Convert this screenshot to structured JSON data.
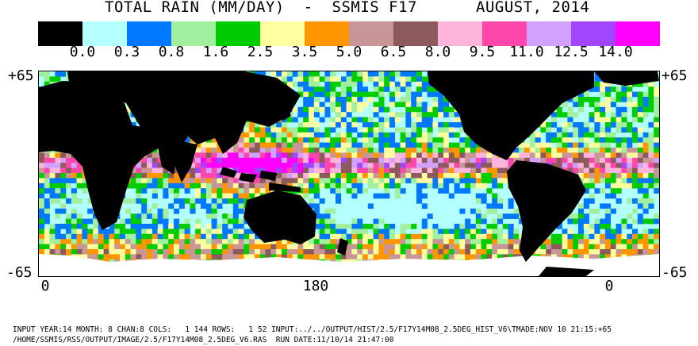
{
  "title": {
    "main": "TOTAL RAIN (MM/DAY)  -  SSMIS F17",
    "date": "AUGUST, 2014"
  },
  "legend": {
    "colors": [
      "#000000",
      "#b4ffff",
      "#0078ff",
      "#a0f0a0",
      "#00cc00",
      "#ffffa0",
      "#ff9600",
      "#c89696",
      "#8c5a5a",
      "#ffb4dc",
      "#ff46aa",
      "#d2a0ff",
      "#a046ff",
      "#ff00ff"
    ],
    "ticks": [
      "0.0",
      "0.3",
      "0.8",
      "1.6",
      "2.5",
      "3.5",
      "5.0",
      "6.5",
      "8.0",
      "9.5",
      "11.0",
      "12.5",
      "14.0"
    ]
  },
  "axes": {
    "lat_top": "+65",
    "lat_bottom": "-65",
    "lon_left": "0",
    "lon_center": "180",
    "lon_right": "0"
  },
  "map": {
    "land_color": "#000000",
    "nodata_color": "#ffffff"
  },
  "footer": {
    "line1": "INPUT YEAR:14 MONTH: 8 CHAN:8 COLS:   1 144 ROWS:   1 52 INPUT:../../OUTPUT/HIST/2.5/F17Y14M08_2.5DEG_HIST_V6\\TMADE:NOV 10 21:15:+65",
    "line2": "/HOME/SSMIS/RSS/OUTPUT/IMAGE/2.5/F17Y14M08_2.5DEG_V6.RAS  RUN DATE:11/10/14 21:47:00"
  }
}
